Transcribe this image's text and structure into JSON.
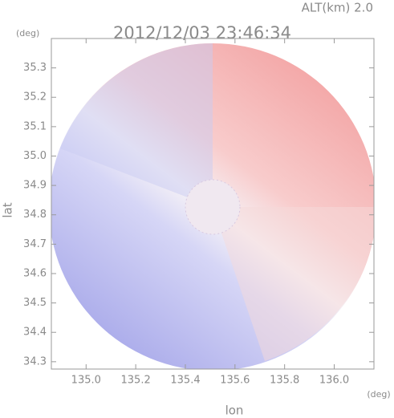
{
  "header": {
    "altitude": "ALT(km) 2.0",
    "time": "2012/12/03 23:46:34"
  },
  "chart_data": {
    "type": "map",
    "ylabel": "lat",
    "yunit": "(deg)",
    "xlabel": "lon",
    "xunit": "(deg)",
    "xlim": [
      134.86,
      136.16
    ],
    "ylim": [
      34.275,
      35.4
    ],
    "xticks": [
      {
        "value": 135,
        "label": "135.0"
      },
      135.2,
      135.4,
      135.6,
      135.8,
      {
        "value": 136,
        "label": "136.0"
      }
    ],
    "yticks": [
      34.3,
      34.4,
      34.5,
      34.6,
      34.7,
      34.8,
      34.9,
      {
        "value": 35,
        "label": "35.0"
      },
      35.1,
      35.2,
      35.3
    ]
  }
}
